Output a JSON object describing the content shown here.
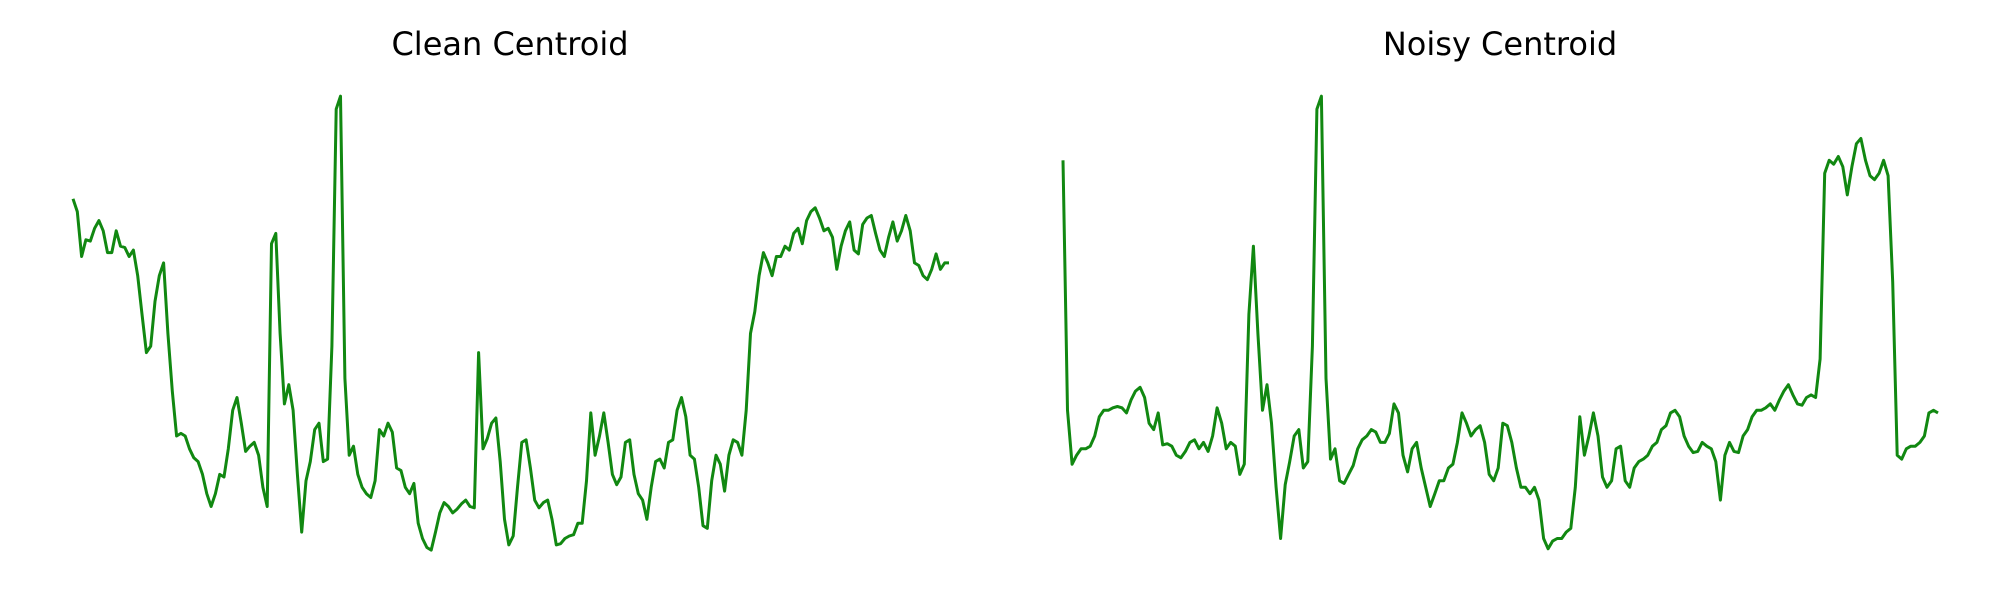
{
  "chart_data": [
    {
      "type": "line",
      "title": "Clean Centroid",
      "color": "#118811",
      "ylim": [
        0,
        390
      ],
      "values": [
        295,
        285,
        250,
        263,
        262,
        272,
        278,
        270,
        253,
        253,
        270,
        258,
        257,
        250,
        255,
        235,
        205,
        175,
        180,
        215,
        235,
        245,
        190,
        145,
        110,
        112,
        110,
        100,
        93,
        90,
        80,
        65,
        55,
        65,
        80,
        78,
        100,
        130,
        140,
        120,
        98,
        102,
        105,
        95,
        70,
        55,
        260,
        268,
        190,
        135,
        150,
        130,
        80,
        35,
        75,
        90,
        115,
        120,
        90,
        92,
        180,
        365,
        375,
        155,
        95,
        102,
        80,
        70,
        65,
        62,
        75,
        115,
        110,
        120,
        113,
        85,
        83,
        70,
        65,
        73,
        42,
        30,
        23,
        21,
        35,
        50,
        58,
        55,
        50,
        53,
        57,
        60,
        55,
        54,
        175,
        100,
        108,
        120,
        124,
        90,
        45,
        25,
        32,
        70,
        105,
        107,
        85,
        60,
        54,
        58,
        60,
        45,
        25,
        26,
        30,
        32,
        33,
        42,
        42,
        75,
        128,
        95,
        110,
        128,
        105,
        80,
        72,
        78,
        105,
        107,
        80,
        65,
        60,
        45,
        70,
        90,
        92,
        85,
        105,
        107,
        130,
        140,
        125,
        95,
        92,
        70,
        40,
        38,
        75,
        95,
        88,
        67,
        95,
        107,
        105,
        95,
        130,
        190,
        207,
        235,
        253,
        245,
        235,
        250,
        250,
        258,
        255,
        268,
        272,
        260,
        278,
        285,
        288,
        280,
        270,
        272,
        265,
        240,
        258,
        270,
        277,
        255,
        252,
        275,
        280,
        282,
        268,
        255,
        250,
        265,
        277,
        262,
        270,
        282,
        270,
        245,
        243,
        235,
        232,
        240,
        252,
        240,
        245,
        245
      ]
    },
    {
      "type": "line",
      "title": "Noisy Centroid",
      "color": "#118811",
      "ylim": [
        0,
        390
      ],
      "values": [
        325,
        130,
        88,
        95,
        100,
        100,
        102,
        110,
        125,
        130,
        130,
        132,
        133,
        132,
        128,
        138,
        145,
        148,
        140,
        120,
        115,
        128,
        103,
        104,
        102,
        95,
        93,
        98,
        105,
        107,
        100,
        105,
        98,
        110,
        132,
        120,
        100,
        105,
        102,
        80,
        88,
        205,
        258,
        190,
        130,
        150,
        120,
        70,
        30,
        72,
        90,
        110,
        115,
        85,
        90,
        180,
        365,
        375,
        155,
        92,
        100,
        75,
        73,
        80,
        87,
        100,
        107,
        110,
        115,
        113,
        105,
        105,
        112,
        135,
        128,
        95,
        82,
        100,
        105,
        85,
        70,
        55,
        65,
        75,
        75,
        85,
        88,
        105,
        128,
        120,
        110,
        115,
        118,
        105,
        80,
        75,
        85,
        120,
        118,
        105,
        85,
        70,
        70,
        65,
        70,
        60,
        30,
        22,
        28,
        30,
        30,
        35,
        38,
        70,
        125,
        95,
        110,
        128,
        110,
        78,
        70,
        75,
        100,
        102,
        75,
        70,
        85,
        90,
        92,
        95,
        102,
        105,
        115,
        118,
        128,
        130,
        125,
        110,
        102,
        97,
        98,
        105,
        102,
        100,
        90,
        60,
        95,
        105,
        98,
        97,
        110,
        115,
        125,
        130,
        130,
        132,
        135,
        130,
        138,
        145,
        150,
        142,
        135,
        134,
        140,
        142,
        140,
        170,
        315,
        325,
        322,
        328,
        320,
        298,
        320,
        338,
        342,
        325,
        313,
        310,
        315,
        325,
        313,
        230,
        95,
        92,
        100,
        102,
        102,
        105,
        110,
        128,
        130,
        128
      ]
    }
  ]
}
